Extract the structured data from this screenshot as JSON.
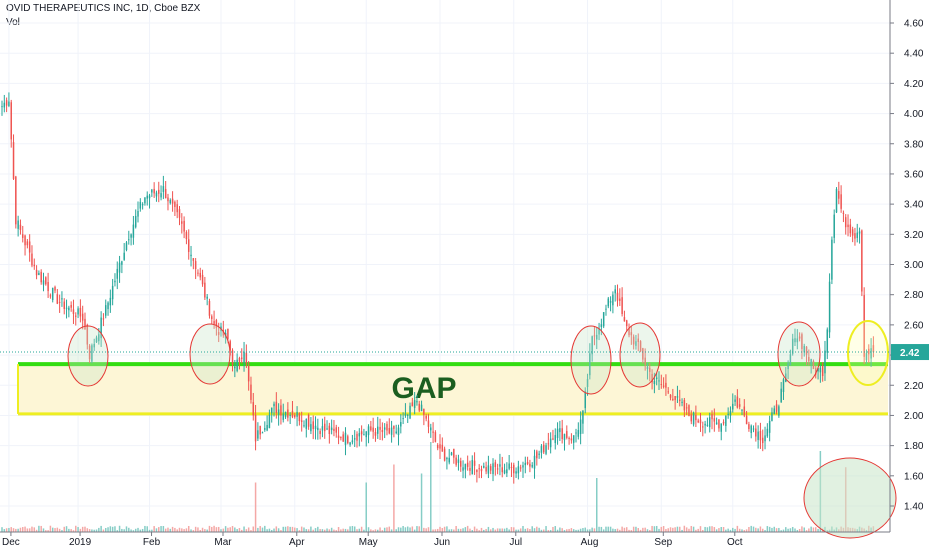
{
  "header": {
    "title": "OVID THERAPEUTICS INC, 1D, Cboe BZX",
    "vol_label": "Vol"
  },
  "colors": {
    "up": "#26a69a",
    "down": "#ef5350",
    "vol_up": "#86cdc6",
    "vol_down": "#f4a8a6",
    "gap_fill": "#fdf6d6",
    "gap_top_line": "#33dd11",
    "gap_bottom_line": "#eeee22",
    "last_price_box": "#26a69a",
    "annotation_red": "#e53935",
    "annotation_yellow": "#eeee22",
    "annotation_green_fill": "#c8e6c9"
  },
  "chart_data": {
    "type": "candlestick",
    "symbol": "OVID THERAPEUTICS INC",
    "interval": "1D",
    "exchange": "Cboe BZX",
    "y_ticks": [
      "1.40",
      "1.60",
      "1.80",
      "2.00",
      "2.20",
      "2.40",
      "2.60",
      "2.80",
      "3.00",
      "3.20",
      "3.40",
      "3.60",
      "3.80",
      "4.00",
      "4.20",
      "4.40",
      "4.60"
    ],
    "x_ticks": [
      "Dec",
      "2019",
      "Feb",
      "Mar",
      "Apr",
      "May",
      "Jun",
      "Jul",
      "Aug",
      "Sep",
      "Oct"
    ],
    "last_price": "2.42",
    "ylim": [
      1.3,
      4.7
    ],
    "gap_zone": {
      "low": 2.01,
      "high": 2.34,
      "label": "GAP"
    },
    "anchors": [
      {
        "d": 0,
        "c": 4.05
      },
      {
        "d": 3,
        "c": 4.1
      },
      {
        "d": 6,
        "c": 3.3
      },
      {
        "d": 15,
        "c": 2.95
      },
      {
        "d": 25,
        "c": 2.75
      },
      {
        "d": 35,
        "c": 2.65
      },
      {
        "d": 38,
        "c": 2.4
      },
      {
        "d": 45,
        "c": 2.7
      },
      {
        "d": 55,
        "c": 3.2
      },
      {
        "d": 62,
        "c": 3.45
      },
      {
        "d": 70,
        "c": 3.5
      },
      {
        "d": 78,
        "c": 3.25
      },
      {
        "d": 85,
        "c": 2.95
      },
      {
        "d": 92,
        "c": 2.6
      },
      {
        "d": 98,
        "c": 2.5
      },
      {
        "d": 101,
        "c": 2.3
      },
      {
        "d": 105,
        "c": 2.45
      },
      {
        "d": 110,
        "c": 1.85
      },
      {
        "d": 118,
        "c": 2.05
      },
      {
        "d": 128,
        "c": 2.0
      },
      {
        "d": 140,
        "c": 1.9
      },
      {
        "d": 150,
        "c": 1.85
      },
      {
        "d": 160,
        "c": 1.9
      },
      {
        "d": 170,
        "c": 1.88
      },
      {
        "d": 176,
        "c": 2.0
      },
      {
        "d": 180,
        "c": 2.1
      },
      {
        "d": 186,
        "c": 1.9
      },
      {
        "d": 190,
        "c": 1.75
      },
      {
        "d": 200,
        "c": 1.68
      },
      {
        "d": 210,
        "c": 1.65
      },
      {
        "d": 222,
        "c": 1.65
      },
      {
        "d": 232,
        "c": 1.72
      },
      {
        "d": 240,
        "c": 1.9
      },
      {
        "d": 248,
        "c": 1.85
      },
      {
        "d": 252,
        "c": 2.0
      },
      {
        "d": 256,
        "c": 2.5
      },
      {
        "d": 262,
        "c": 2.7
      },
      {
        "d": 266,
        "c": 2.85
      },
      {
        "d": 270,
        "c": 2.6
      },
      {
        "d": 276,
        "c": 2.45
      },
      {
        "d": 282,
        "c": 2.25
      },
      {
        "d": 290,
        "c": 2.15
      },
      {
        "d": 298,
        "c": 2.0
      },
      {
        "d": 306,
        "c": 1.95
      },
      {
        "d": 312,
        "c": 1.95
      },
      {
        "d": 318,
        "c": 2.1
      },
      {
        "d": 324,
        "c": 1.95
      },
      {
        "d": 330,
        "c": 1.85
      },
      {
        "d": 336,
        "c": 2.05
      },
      {
        "d": 340,
        "c": 2.25
      },
      {
        "d": 344,
        "c": 2.55
      },
      {
        "d": 348,
        "c": 2.45
      },
      {
        "d": 352,
        "c": 2.3
      },
      {
        "d": 356,
        "c": 2.3
      },
      {
        "d": 358,
        "c": 2.6
      },
      {
        "d": 360,
        "c": 3.2
      },
      {
        "d": 362,
        "c": 3.5
      },
      {
        "d": 365,
        "c": 3.3
      },
      {
        "d": 370,
        "c": 3.2
      },
      {
        "d": 372,
        "c": 3.25
      },
      {
        "d": 374,
        "c": 2.42
      },
      {
        "d": 378,
        "c": 2.42
      }
    ],
    "volume_spikes": [
      {
        "d": 110,
        "v": 0.55
      },
      {
        "d": 158,
        "v": 0.55
      },
      {
        "d": 170,
        "v": 0.75
      },
      {
        "d": 182,
        "v": 0.65
      },
      {
        "d": 186,
        "v": 1.0
      },
      {
        "d": 258,
        "v": 0.6
      },
      {
        "d": 355,
        "v": 0.9
      },
      {
        "d": 366,
        "v": 0.72
      }
    ]
  }
}
